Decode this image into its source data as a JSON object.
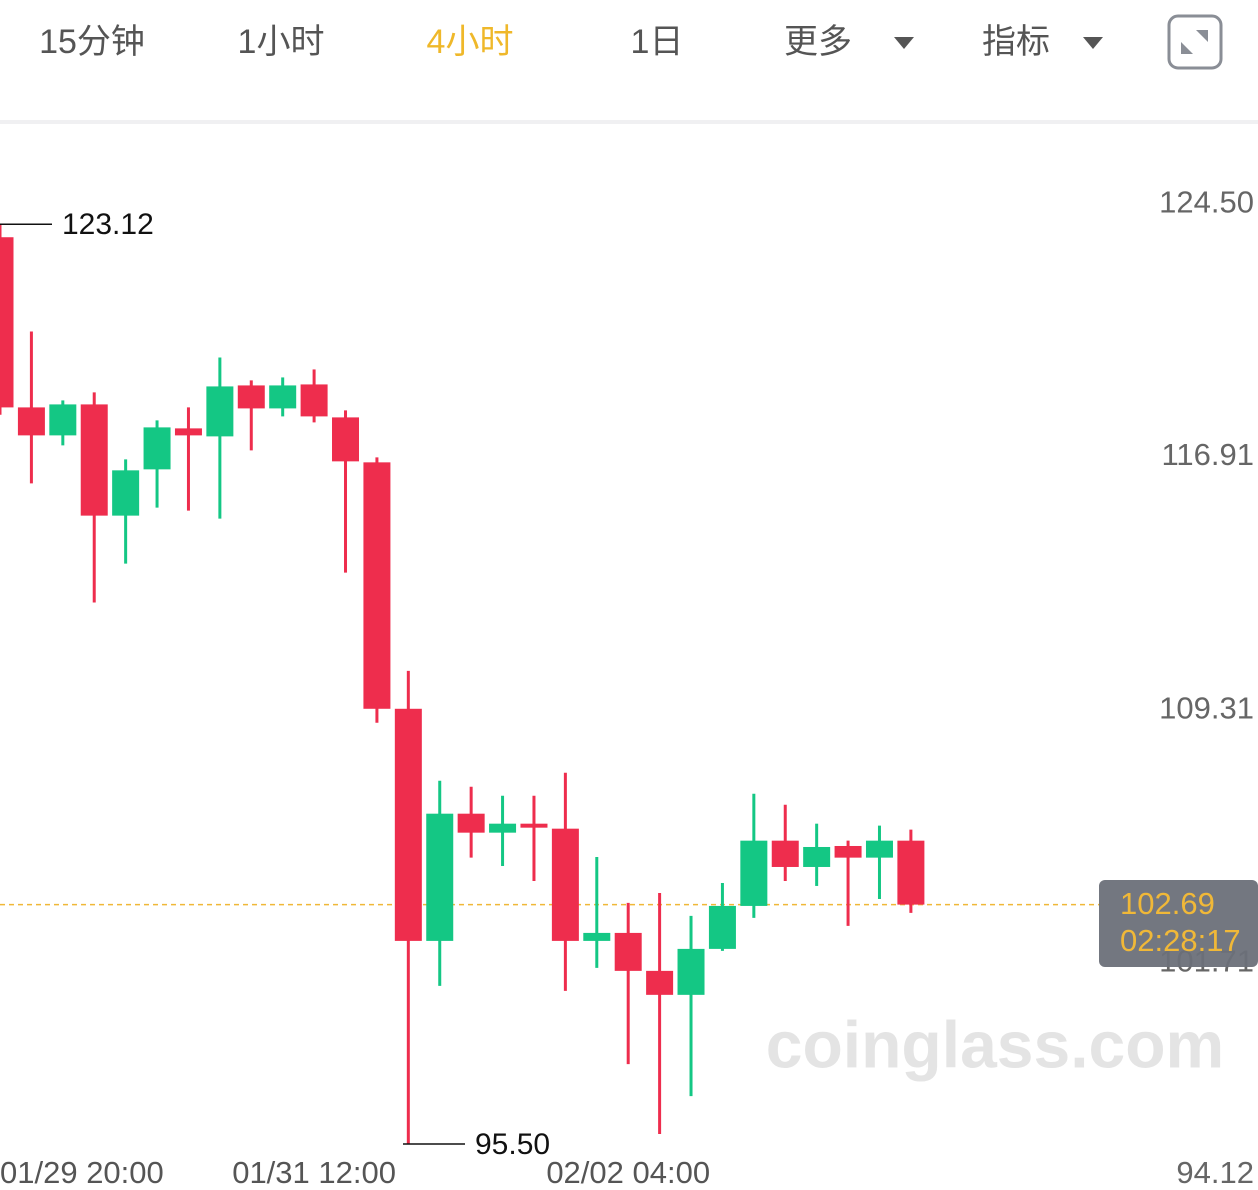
{
  "toolbar": {
    "tabs": [
      "15分钟",
      "1小时",
      "4小时",
      "1日",
      "更多",
      "指标"
    ],
    "active": 2
  },
  "chart_data": {
    "type": "candlestick",
    "categories": [
      "01/29 20:00",
      null,
      null,
      null,
      null,
      null,
      null,
      null,
      null,
      null,
      "01/31 12:00",
      null,
      null,
      null,
      null,
      null,
      null,
      null,
      null,
      null,
      "02/02 04:00",
      null,
      null,
      null,
      null,
      null,
      null,
      null,
      null,
      null
    ],
    "open": [
      122.73,
      117.62,
      116.78,
      117.71,
      114.37,
      115.76,
      116.99,
      116.75,
      118.28,
      117.59,
      118.31,
      117.32,
      115.97,
      108.57,
      101.6,
      105.42,
      104.85,
      105.12,
      104.97,
      101.6,
      101.84,
      100.7,
      99.98,
      101.36,
      102.65,
      104.61,
      103.82,
      104.45,
      104.1,
      104.61
    ],
    "high": [
      123.12,
      119.9,
      117.83,
      118.07,
      116.06,
      117.23,
      117.62,
      119.12,
      118.43,
      118.52,
      118.76,
      117.53,
      116.12,
      109.71,
      106.41,
      106.23,
      105.96,
      105.96,
      106.65,
      104.12,
      102.74,
      103.04,
      102.35,
      103.34,
      106.02,
      105.69,
      105.12,
      104.61,
      105.06,
      104.94
    ],
    "low": [
      117.4,
      115.34,
      116.48,
      111.76,
      112.93,
      114.61,
      114.52,
      114.28,
      116.33,
      117.35,
      117.17,
      112.66,
      108.15,
      95.5,
      100.25,
      104.1,
      103.85,
      103.4,
      100.1,
      100.79,
      97.9,
      95.8,
      96.94,
      101.3,
      102.29,
      103.4,
      103.25,
      102.05,
      102.86,
      102.44
    ],
    "close": [
      117.62,
      116.78,
      117.71,
      114.37,
      115.73,
      117.02,
      116.78,
      118.25,
      117.59,
      118.28,
      117.35,
      116.0,
      108.57,
      101.6,
      105.42,
      104.85,
      105.12,
      105.0,
      101.6,
      101.84,
      100.7,
      99.98,
      101.36,
      102.65,
      104.61,
      103.82,
      104.42,
      104.1,
      104.61,
      102.69
    ],
    "up_color": "#14c784",
    "down_color": "#ee2d4d",
    "ylim": [
      94.12,
      126.1
    ],
    "yticks": [
      {
        "value": 124.5,
        "label": "124.50"
      },
      116.91,
      109.31,
      101.71,
      94.12
    ],
    "markers": [
      123.12,
      {
        "value": 95.5,
        "label": "95.50"
      }
    ],
    "last_price": 102.69,
    "countdown": "02:28:17",
    "last_price_color": "#f0b838",
    "watermark": "coinglass.com"
  }
}
